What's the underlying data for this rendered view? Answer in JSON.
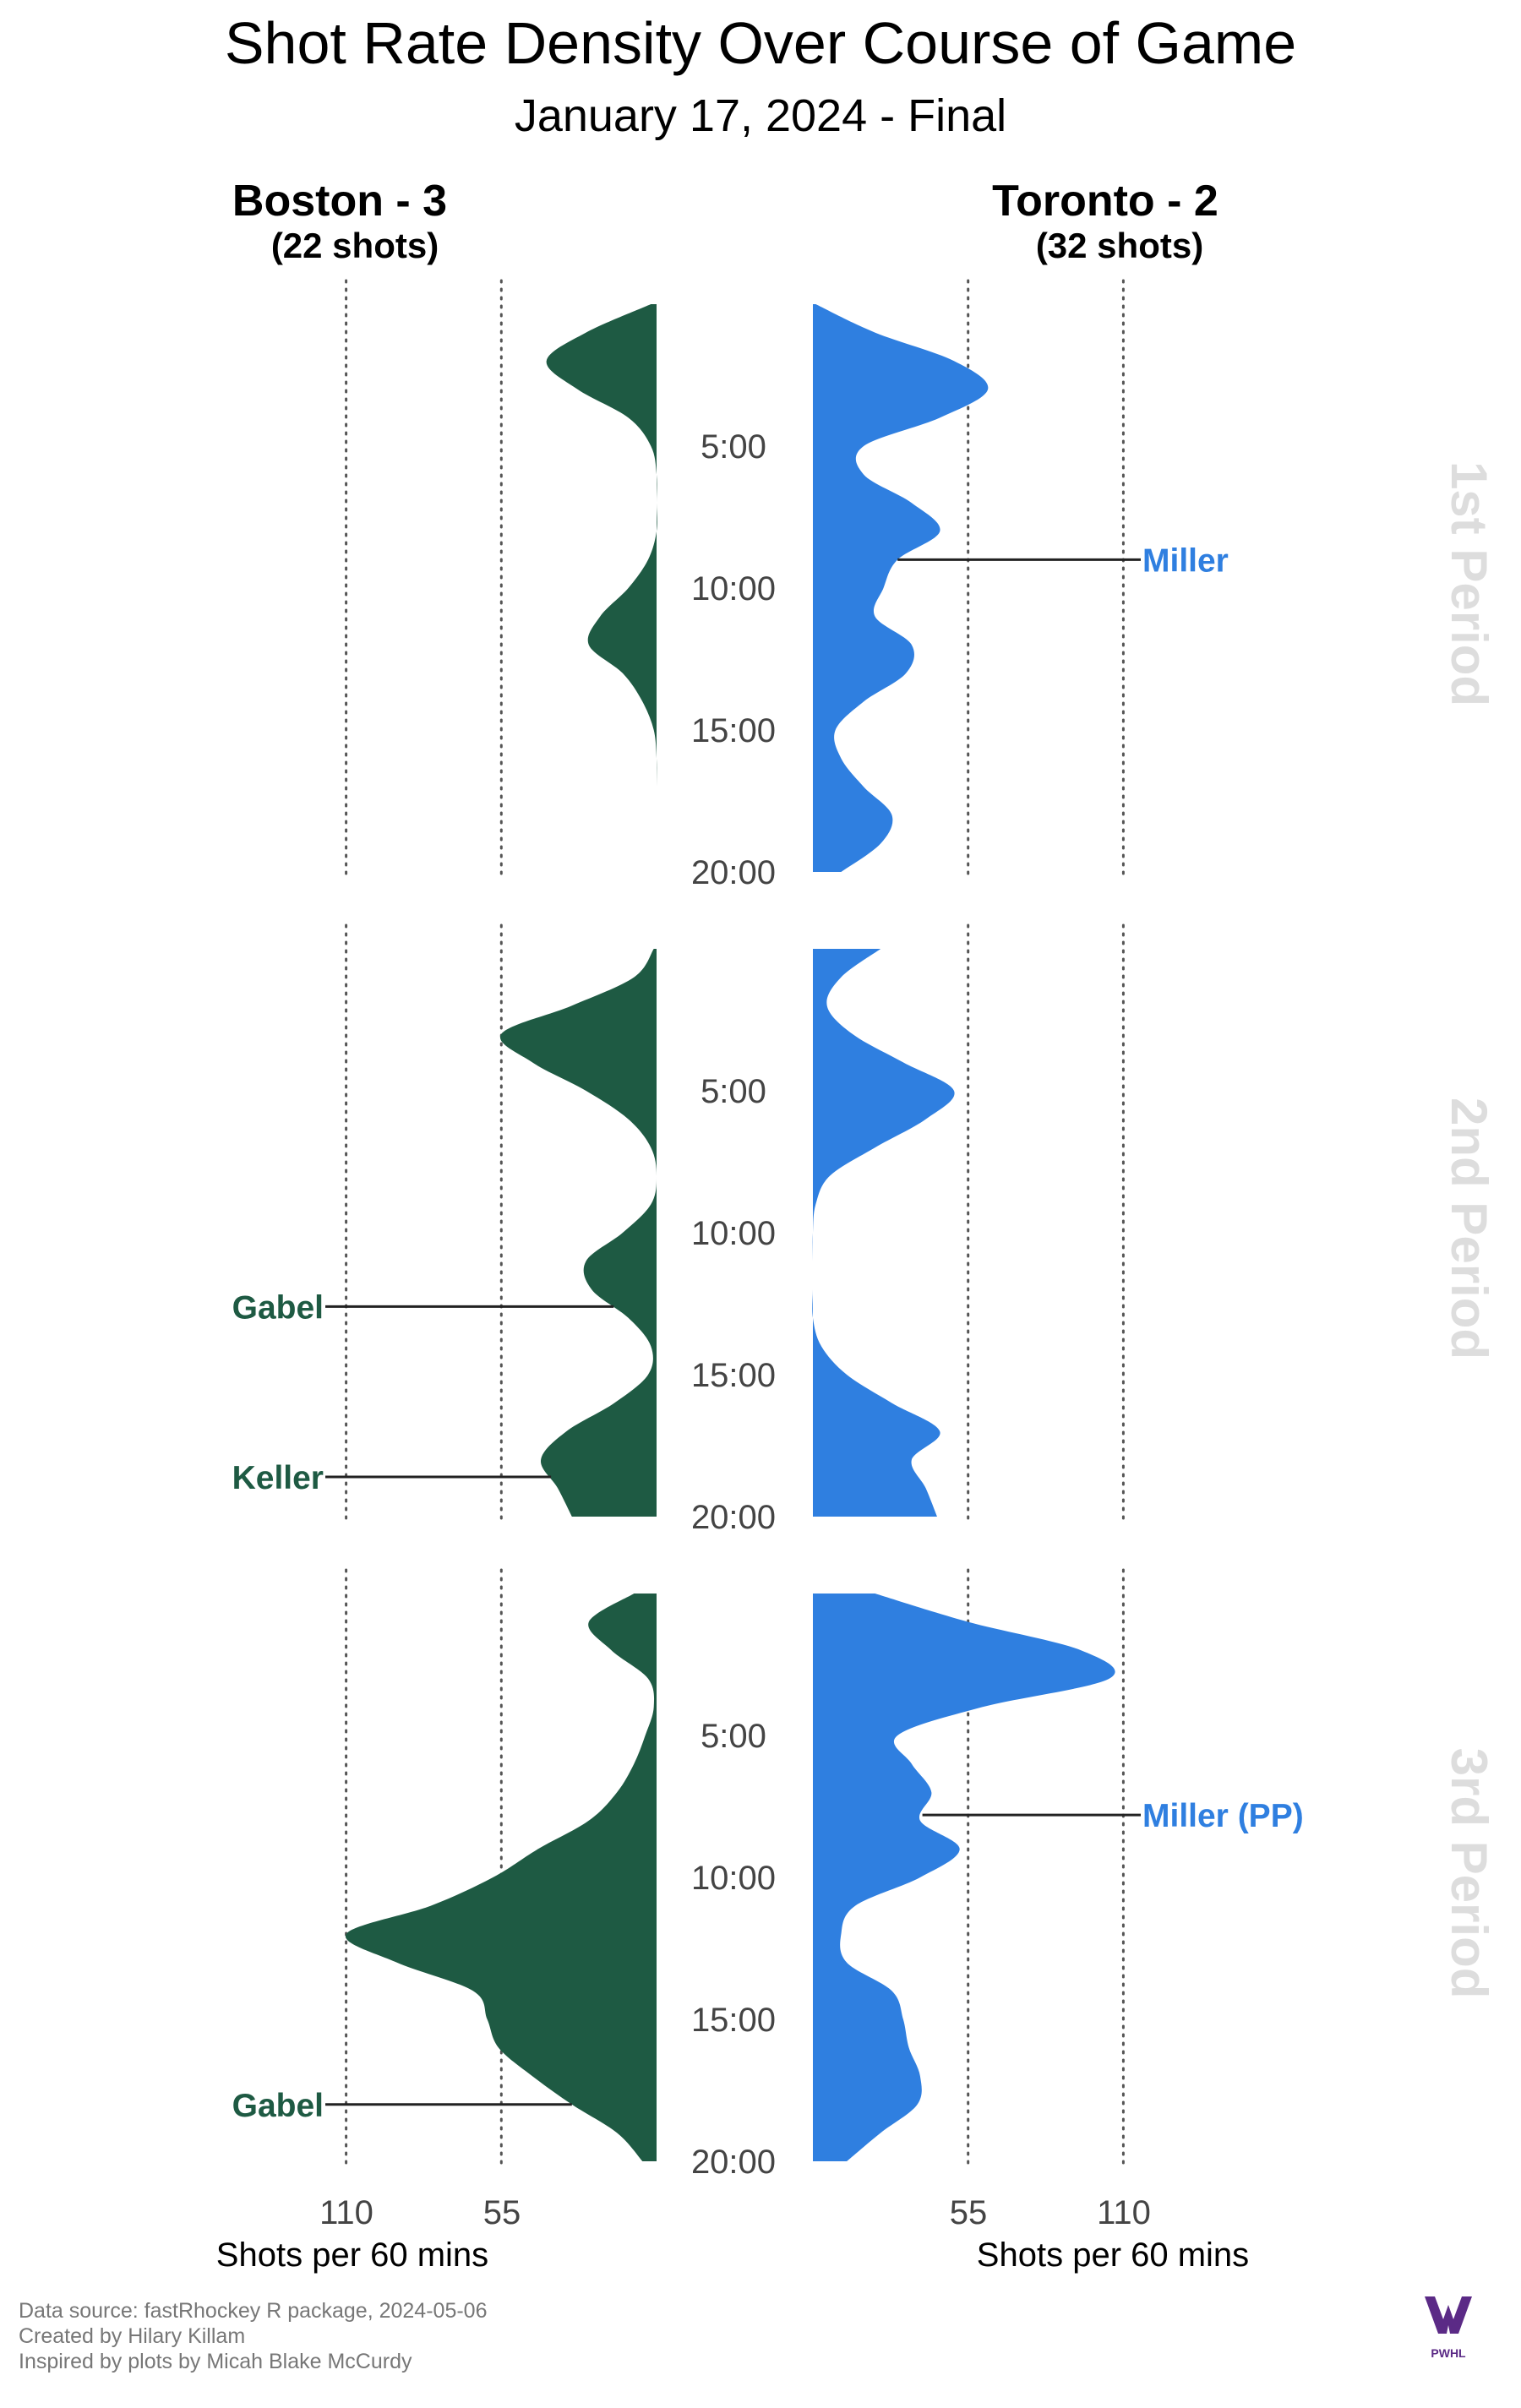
{
  "title": "Shot Rate Density Over Course of Game",
  "subtitle": "January 17, 2024 - Final",
  "colors": {
    "boston": "#1e5a43",
    "toronto": "#2f7fe0",
    "period_label": "#dddddd",
    "grid": "#555555",
    "goal_line": "#222222",
    "logo": "#5b2a86"
  },
  "teams": {
    "boston": {
      "heading": "Boston - 3",
      "shots_label": "(22 shots)"
    },
    "toronto": {
      "heading": "Toronto - 2",
      "shots_label": "(32 shots)"
    }
  },
  "time_ticks": [
    "5:00",
    "10:00",
    "15:00",
    "20:00"
  ],
  "periods": [
    "1st Period",
    "2nd Period",
    "3rd Period"
  ],
  "x_axis": {
    "ticks": [
      "110",
      "55"
    ],
    "ticks_right": [
      "55",
      "110"
    ],
    "title": "Shots per 60 mins"
  },
  "captions": {
    "line1": "Data source: fastRhockey R package, 2024-05-06",
    "line2": "Created by Hilary Killam",
    "line3": "Inspired by plots by Micah Blake McCurdy"
  },
  "logo": {
    "text": "PWHL"
  },
  "chart_data": {
    "type": "area",
    "orientation": "mirrored-vertical",
    "x_unit": "Shots per 60 mins",
    "x_ticks": [
      55,
      110
    ],
    "xlim": [
      0,
      110
    ],
    "y_unit": "game time (min)",
    "ylim": [
      0,
      20
    ],
    "y_ticks": [
      5,
      10,
      15,
      20
    ],
    "grid": "dotted vertical lines at 55 and 110",
    "series": [
      {
        "name": "Boston - 3",
        "side": "left",
        "periods": [
          {
            "period": "1st Period",
            "time": [
              0,
              1,
              2,
              3,
              4,
              5,
              6,
              7,
              8,
              9,
              10,
              11,
              12,
              13,
              14,
              15,
              16,
              17,
              18,
              19,
              20
            ],
            "rate": [
              2,
              25,
              39,
              28,
              10,
              2,
              0,
              0,
              0,
              3,
              10,
              20,
              24,
              12,
              5,
              1,
              0,
              0,
              0,
              0,
              0
            ]
          },
          {
            "period": "2nd Period",
            "time": [
              0,
              1,
              2,
              3,
              4,
              5,
              6,
              7,
              8,
              9,
              10,
              11,
              12,
              13,
              14,
              15,
              16,
              17,
              18,
              19,
              20
            ],
            "rate": [
              1,
              8,
              30,
              55,
              44,
              25,
              10,
              2,
              0,
              2,
              12,
              25,
              23,
              10,
              2,
              3,
              15,
              32,
              41,
              35,
              30
            ]
          },
          {
            "period": "3rd Period",
            "time": [
              0,
              1,
              2,
              3,
              4,
              5,
              6,
              7,
              8,
              9,
              10,
              11,
              12,
              13,
              14,
              15,
              16,
              17,
              18,
              19,
              20
            ],
            "rate": [
              8,
              24,
              16,
              3,
              1,
              4,
              8,
              14,
              24,
              42,
              58,
              80,
              110,
              92,
              65,
              60,
              56,
              44,
              30,
              14,
              5
            ]
          }
        ]
      },
      {
        "name": "Toronto - 2",
        "side": "right",
        "periods": [
          {
            "period": "1st Period",
            "time": [
              0,
              1,
              2,
              3,
              4,
              5,
              6,
              7,
              8,
              9,
              10,
              11,
              12,
              13,
              14,
              15,
              16,
              17,
              18,
              19,
              20
            ],
            "rate": [
              1,
              22,
              50,
              62,
              45,
              18,
              18,
              35,
              45,
              30,
              25,
              22,
              35,
              33,
              18,
              8,
              10,
              18,
              28,
              24,
              10
            ]
          },
          {
            "period": "2nd Period",
            "time": [
              0,
              1,
              2,
              3,
              4,
              5,
              6,
              7,
              8,
              9,
              10,
              11,
              12,
              13,
              14,
              15,
              16,
              17,
              18,
              19,
              20
            ],
            "rate": [
              24,
              10,
              5,
              14,
              32,
              50,
              40,
              22,
              6,
              1,
              0,
              0,
              0,
              0,
              3,
              12,
              28,
              45,
              35,
              40,
              44
            ]
          },
          {
            "period": "3rd Period",
            "time": [
              0,
              1,
              2,
              3,
              4,
              5,
              6,
              7,
              8,
              9,
              10,
              11,
              12,
              13,
              14,
              15,
              16,
              17,
              18,
              19,
              20
            ],
            "rate": [
              22,
              55,
              95,
              105,
              60,
              30,
              35,
              42,
              38,
              52,
              38,
              15,
              10,
              12,
              28,
              32,
              34,
              38,
              37,
              24,
              12
            ]
          }
        ]
      }
    ],
    "annotations": [
      {
        "team": "Toronto - 2",
        "period": "1st Period",
        "time_min": 9,
        "label": "Miller"
      },
      {
        "team": "Boston - 3",
        "period": "2nd Period",
        "time_min": 12.6,
        "label": "Gabel"
      },
      {
        "team": "Boston - 3",
        "period": "2nd Period",
        "time_min": 18.6,
        "label": "Keller"
      },
      {
        "team": "Toronto - 2",
        "period": "3rd Period",
        "time_min": 7.8,
        "label": "Miller (PP)"
      },
      {
        "team": "Boston - 3",
        "period": "3rd Period",
        "time_min": 18.0,
        "label": "Gabel"
      }
    ]
  }
}
